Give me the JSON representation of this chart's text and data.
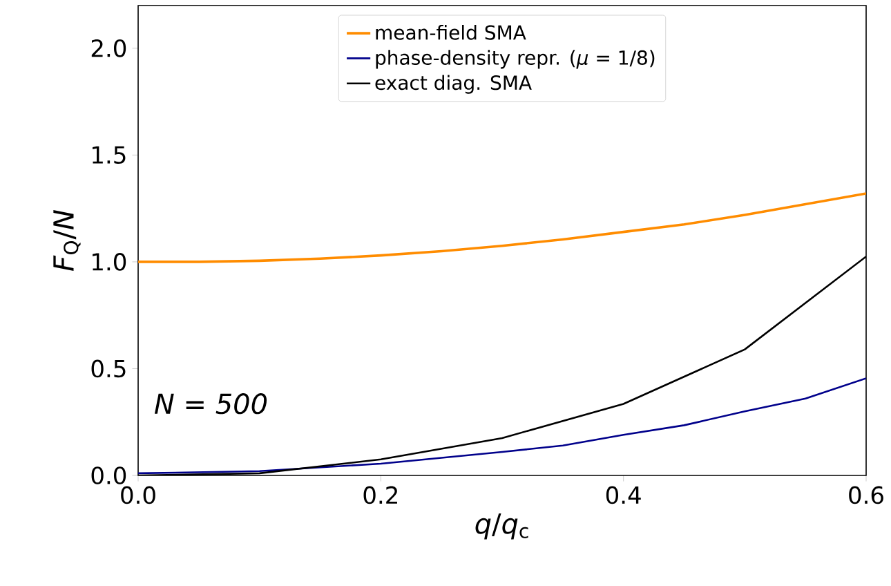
{
  "chart_data": {
    "type": "line",
    "xlabel": "*q*/*q*$_{c}$",
    "ylabel": "*F*$_{Q}$/*N*",
    "xlim": [
      0,
      0.6
    ],
    "ylim": [
      0,
      2.2
    ],
    "xticks": [
      {
        "value": 0,
        "label": "0.0"
      },
      0.2,
      0.4,
      0.6
    ],
    "yticks": [
      {
        "value": 0,
        "label": "0.0"
      },
      0.5,
      {
        "value": 1,
        "label": "1.0"
      },
      1.5,
      {
        "value": 2,
        "label": "2.0"
      }
    ],
    "legend": "top",
    "grid": false,
    "annotations": [
      "N = 500"
    ],
    "series": [
      {
        "name": "mean-field SMA",
        "color": "#ff8c00",
        "x": [
          0,
          0.05,
          0.1,
          0.15,
          0.2,
          0.25,
          0.3,
          0.35,
          0.4,
          0.45,
          0.5,
          0.55,
          0.6
        ],
        "values": [
          1.0,
          1.0,
          1.005,
          1.015,
          1.03,
          1.05,
          1.075,
          1.105,
          1.14,
          1.175,
          1.22,
          1.27,
          1.32
        ]
      },
      {
        "name": "phase-density repr. (*μ* = 1/8)",
        "color": "#00008b",
        "x": [
          0,
          0.1,
          0.2,
          0.3,
          0.35,
          0.4,
          0.45,
          0.5,
          0.55,
          0.6
        ],
        "values": [
          0.01,
          0.02,
          0.055,
          0.11,
          0.14,
          0.19,
          0.235,
          0.3,
          0.36,
          0.455
        ]
      },
      {
        "name": "exact diag. SMA",
        "color": "#000000",
        "x": [
          0,
          0.1,
          0.2,
          0.3,
          0.4,
          0.5,
          0.6
        ],
        "values": [
          0.0,
          0.01,
          0.075,
          0.175,
          0.335,
          0.59,
          1.025
        ]
      }
    ]
  }
}
